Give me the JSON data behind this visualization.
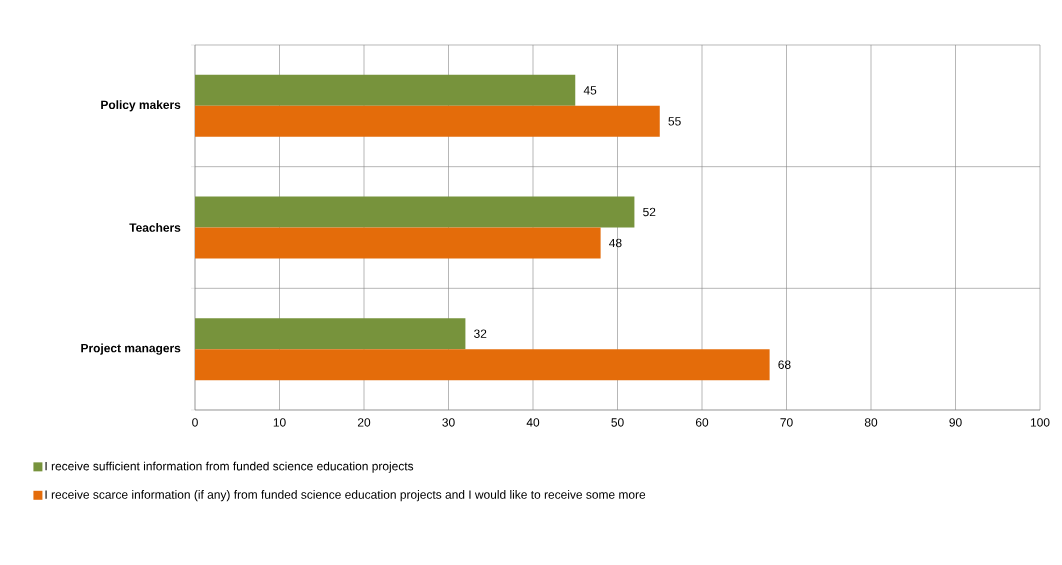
{
  "chart_data": {
    "type": "bar",
    "orientation": "horizontal",
    "categories": [
      "Policy makers",
      "Teachers",
      "Project managers"
    ],
    "series": [
      {
        "name": "I receive sufficient information from funded science education projects",
        "color": "#77933c",
        "values": [
          45,
          52,
          32
        ]
      },
      {
        "name": "I receive scarce information (if any) from funded science education projects and I would like to receive some more",
        "color": "#e46c0a",
        "values": [
          55,
          48,
          68
        ]
      }
    ],
    "xlim": [
      0,
      100
    ],
    "xticks": [
      0,
      10,
      20,
      30,
      40,
      50,
      60,
      70,
      80,
      90,
      100
    ],
    "grid": true,
    "legend": "bottom",
    "data_labels": true
  }
}
